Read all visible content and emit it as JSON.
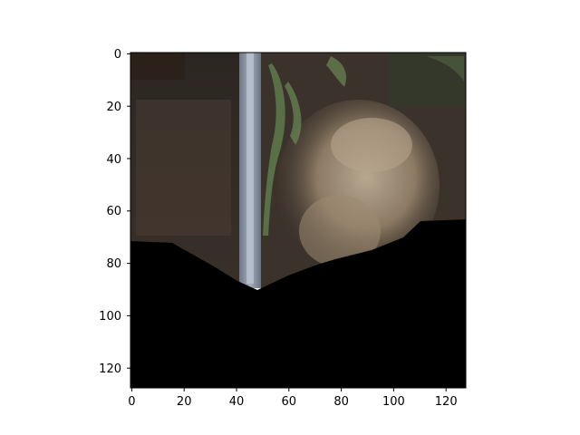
{
  "figure": {
    "axes": {
      "x_ticks": [
        "0",
        "20",
        "40",
        "60",
        "80",
        "100",
        "120"
      ],
      "y_ticks": [
        "0",
        "20",
        "40",
        "60",
        "80",
        "100",
        "120"
      ]
    },
    "image": {
      "description_tags": [
        "photo-crop",
        "wall-edge",
        "painted-mural",
        "black-masked-lower-region"
      ],
      "colors": {
        "background": "#ffffff",
        "mask": "#000000",
        "wall_dark": "#3a302a",
        "stripe": "#8a95a5",
        "mural_green": "#5f7a4a",
        "mural_tan": "#a89478"
      }
    }
  }
}
